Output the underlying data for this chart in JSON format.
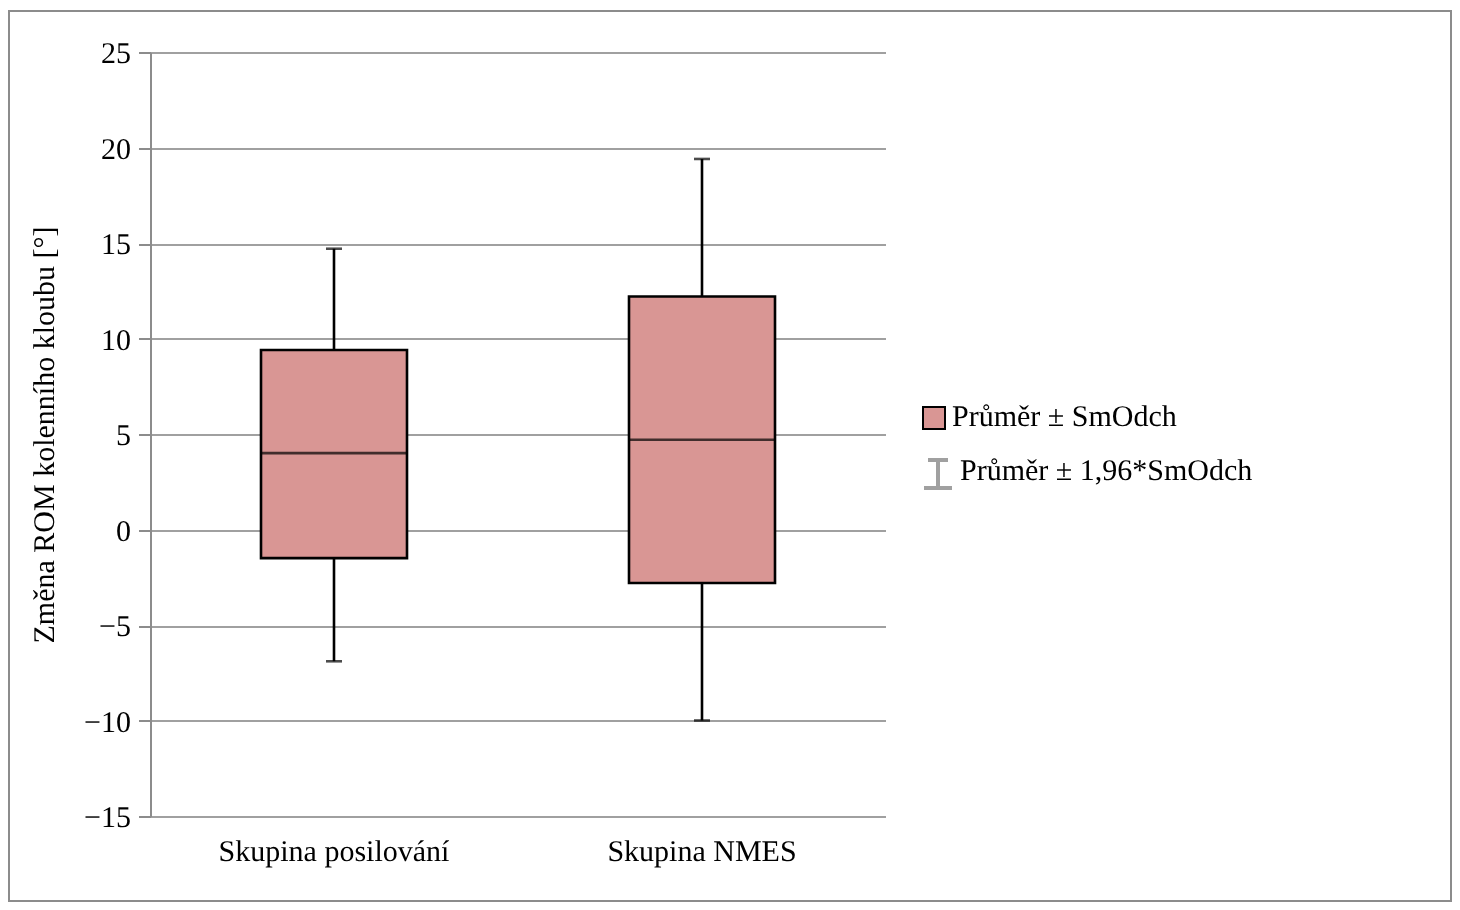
{
  "chart_data": {
    "type": "box",
    "ylabel": "Změna ROM kolenního kloubu [°]",
    "categories": [
      "Skupina posilování",
      "Skupina NMES"
    ],
    "series": [
      {
        "name": "Průměr ± SmOdch",
        "color": "#d99694",
        "boxes": [
          {
            "low": -6.9,
            "q1": -1.5,
            "median": 4.0,
            "q3": 9.4,
            "high": 14.7
          },
          {
            "low": -10,
            "q1": -2.8,
            "median": 4.7,
            "q3": 12.2,
            "high": 19.4
          }
        ]
      }
    ],
    "annotations": [
      "Průměr ± 1,96*SmOdch"
    ],
    "ylim": [
      -15,
      25
    ],
    "yticks": [
      -15,
      -10,
      -5,
      0,
      5,
      10,
      15,
      20,
      25
    ],
    "grid": "y",
    "legend": "right"
  }
}
